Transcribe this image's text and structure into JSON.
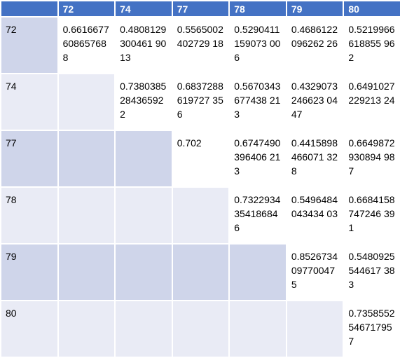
{
  "table": {
    "corner": "",
    "columns": [
      "72",
      "74",
      "77",
      "78",
      "79",
      "80"
    ],
    "rows": [
      {
        "label": "72",
        "cells": [
          "0.6616677608657688",
          "0.4808129300461 9013",
          "0.5565002402729 18",
          "0.5290411159073 006",
          "0.4686122096262 26",
          "0.5219966618855 962"
        ]
      },
      {
        "label": "74",
        "cells": [
          "",
          "0.7380385284365922",
          "0.6837288619727 356",
          "0.5670343677438 213",
          "0.4329073246623 0447",
          "0.6491027229213 24"
        ]
      },
      {
        "label": "77",
        "cells": [
          "",
          "",
          "0.702",
          "0.6747490396406 213",
          "0.4415898466071 328",
          "0.6649872930894 987"
        ]
      },
      {
        "label": "78",
        "cells": [
          "",
          "",
          "",
          "0.7322934354186846",
          "0.5496484043434 03",
          "0.6684158747246 391"
        ]
      },
      {
        "label": "79",
        "cells": [
          "",
          "",
          "",
          "",
          "0.8526734097700475",
          "0.5480925544617 383"
        ]
      },
      {
        "label": "80",
        "cells": [
          "",
          "",
          "",
          "",
          "",
          "0.7358552546717957"
        ]
      }
    ]
  },
  "colors": {
    "header": "#4472c4",
    "diagonal": "#ed7d31",
    "band_dark": "#cfd5ea",
    "band_light": "#e9ebf5",
    "value_bg": "#ffffff"
  }
}
